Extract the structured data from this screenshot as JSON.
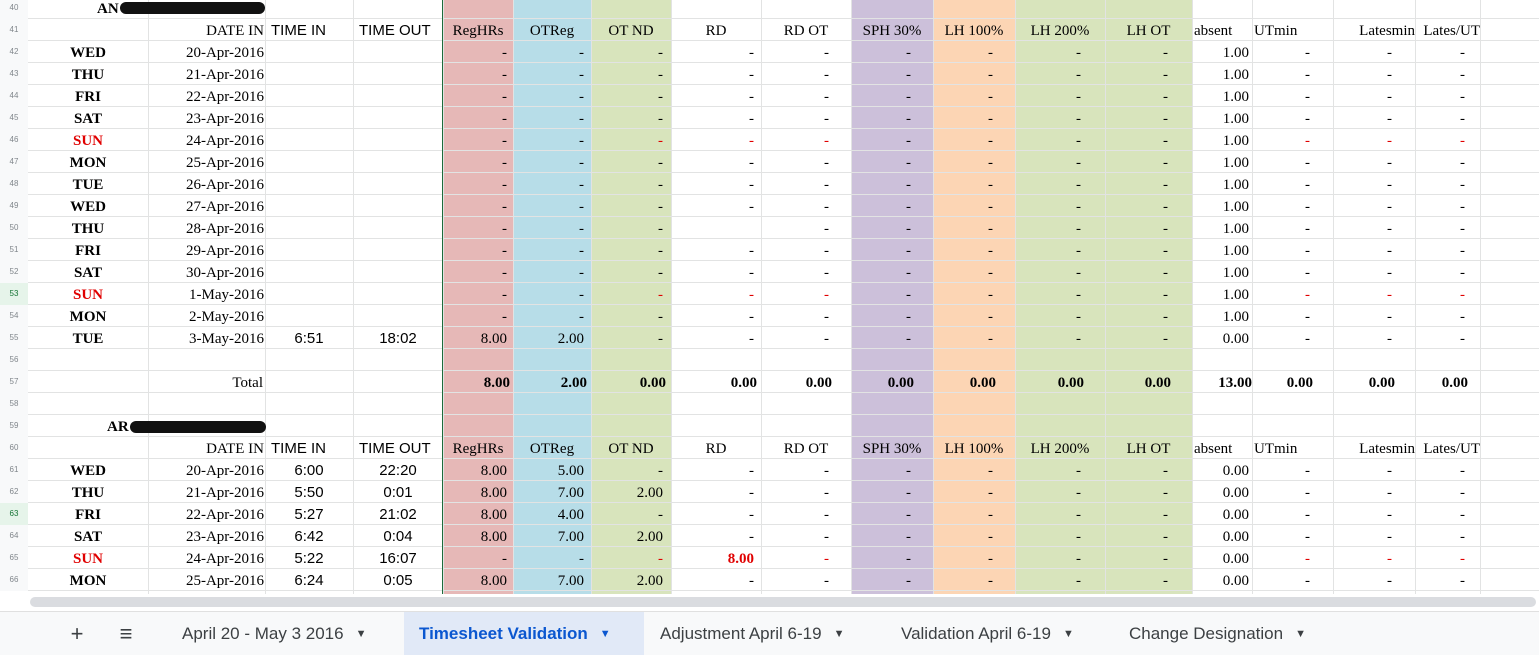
{
  "colors": {
    "reg": "#e6b8b7",
    "otreg": "#b7dde8",
    "otnd": "#d8e4bc",
    "sph": "#ccc0da",
    "lh100": "#fcd5b4",
    "lh200": "#d8e4bc",
    "lhot": "#d8e4bc",
    "accent": "#0b57d0",
    "holiday_red": "#e00000"
  },
  "headers": [
    "DATE IN",
    "TIME IN",
    "TIME OUT",
    "RegHRs",
    "OTReg",
    "OT ND",
    "RD",
    "RD OT",
    "SPH 30%",
    "LH 100%",
    "LH 200%",
    "LH OT",
    "absent",
    "UTmin",
    "Latesmin",
    "Lates/UT"
  ],
  "block1": {
    "name": "AN",
    "rows": [
      {
        "num": "42",
        "day": "WED",
        "date": "20-Apr-2016",
        "tin": "",
        "tout": "",
        "reg": "-",
        "ot": "-",
        "otnd": "-",
        "rd": "-",
        "rdot": "-",
        "sph": "-",
        "lh100": "-",
        "lh200": "-",
        "lhot": "-",
        "absent": "1.00",
        "ut": "-",
        "late": "-",
        "lut": "-"
      },
      {
        "num": "43",
        "day": "THU",
        "date": "21-Apr-2016",
        "tin": "",
        "tout": "",
        "reg": "-",
        "ot": "-",
        "otnd": "-",
        "rd": "-",
        "rdot": "-",
        "sph": "-",
        "lh100": "-",
        "lh200": "-",
        "lhot": "-",
        "absent": "1.00",
        "ut": "-",
        "late": "-",
        "lut": "-"
      },
      {
        "num": "44",
        "day": "FRI",
        "date": "22-Apr-2016",
        "tin": "",
        "tout": "",
        "reg": "-",
        "ot": "-",
        "otnd": "-",
        "rd": "-",
        "rdot": "-",
        "sph": "-",
        "lh100": "-",
        "lh200": "-",
        "lhot": "-",
        "absent": "1.00",
        "ut": "-",
        "late": "-",
        "lut": "-"
      },
      {
        "num": "45",
        "day": "SAT",
        "date": "23-Apr-2016",
        "tin": "",
        "tout": "",
        "reg": "-",
        "ot": "-",
        "otnd": "-",
        "rd": "-",
        "rdot": "-",
        "sph": "-",
        "lh100": "-",
        "lh200": "-",
        "lhot": "-",
        "absent": "1.00",
        "ut": "-",
        "late": "-",
        "lut": "-"
      },
      {
        "num": "46",
        "day": "SUN",
        "date": "24-Apr-2016",
        "tin": "",
        "tout": "",
        "reg": "-",
        "ot": "-",
        "otnd": "-",
        "rd": "-",
        "rdot": "-",
        "sph": "-",
        "lh100": "-",
        "lh200": "-",
        "lhot": "-",
        "absent": "1.00",
        "ut": "-",
        "late": "-",
        "lut": "-"
      },
      {
        "num": "47",
        "day": "MON",
        "date": "25-Apr-2016",
        "tin": "",
        "tout": "",
        "reg": "-",
        "ot": "-",
        "otnd": "-",
        "rd": "-",
        "rdot": "-",
        "sph": "-",
        "lh100": "-",
        "lh200": "-",
        "lhot": "-",
        "absent": "1.00",
        "ut": "-",
        "late": "-",
        "lut": "-"
      },
      {
        "num": "48",
        "day": "TUE",
        "date": "26-Apr-2016",
        "tin": "",
        "tout": "",
        "reg": "-",
        "ot": "-",
        "otnd": "-",
        "rd": "-",
        "rdot": "-",
        "sph": "-",
        "lh100": "-",
        "lh200": "-",
        "lhot": "-",
        "absent": "1.00",
        "ut": "-",
        "late": "-",
        "lut": "-"
      },
      {
        "num": "49",
        "day": "WED",
        "date": "27-Apr-2016",
        "tin": "",
        "tout": "",
        "reg": "-",
        "ot": "-",
        "otnd": "-",
        "rd": "-",
        "rdot": "-",
        "sph": "-",
        "lh100": "-",
        "lh200": "-",
        "lhot": "-",
        "absent": "1.00",
        "ut": "-",
        "late": "-",
        "lut": "-"
      },
      {
        "num": "50",
        "day": "THU",
        "date": "28-Apr-2016",
        "tin": "",
        "tout": "",
        "reg": "-",
        "ot": "-",
        "otnd": "-",
        "rd": "",
        "rdot": "-",
        "sph": "-",
        "lh100": "-",
        "lh200": "-",
        "lhot": "-",
        "absent": "1.00",
        "ut": "-",
        "late": "-",
        "lut": "-"
      },
      {
        "num": "51",
        "day": "FRI",
        "date": "29-Apr-2016",
        "tin": "",
        "tout": "",
        "reg": "-",
        "ot": "-",
        "otnd": "-",
        "rd": "-",
        "rdot": "-",
        "sph": "-",
        "lh100": "-",
        "lh200": "-",
        "lhot": "-",
        "absent": "1.00",
        "ut": "-",
        "late": "-",
        "lut": "-"
      },
      {
        "num": "52",
        "day": "SAT",
        "date": "30-Apr-2016",
        "tin": "",
        "tout": "",
        "reg": "-",
        "ot": "-",
        "otnd": "-",
        "rd": "-",
        "rdot": "-",
        "sph": "-",
        "lh100": "-",
        "lh200": "-",
        "lhot": "-",
        "absent": "1.00",
        "ut": "-",
        "late": "-",
        "lut": "-"
      },
      {
        "num": "53",
        "day": "SUN",
        "date": "1-May-2016",
        "tin": "",
        "tout": "",
        "reg": "-",
        "ot": "-",
        "otnd": "-",
        "rd": "-",
        "rdot": "-",
        "sph": "-",
        "lh100": "-",
        "lh200": "-",
        "lhot": "-",
        "absent": "1.00",
        "ut": "-",
        "late": "-",
        "lut": "-"
      },
      {
        "num": "54",
        "day": "MON",
        "date": "2-May-2016",
        "tin": "",
        "tout": "",
        "reg": "-",
        "ot": "-",
        "otnd": "-",
        "rd": "-",
        "rdot": "-",
        "sph": "-",
        "lh100": "-",
        "lh200": "-",
        "lhot": "-",
        "absent": "1.00",
        "ut": "-",
        "late": "-",
        "lut": "-"
      },
      {
        "num": "55",
        "day": "TUE",
        "date": "3-May-2016",
        "tin": "6:51",
        "tout": "18:02",
        "reg": "8.00",
        "ot": "2.00",
        "otnd": "-",
        "rd": "-",
        "rdot": "-",
        "sph": "-",
        "lh100": "-",
        "lh200": "-",
        "lhot": "-",
        "absent": "0.00",
        "ut": "-",
        "late": "-",
        "lut": "-"
      }
    ],
    "total": {
      "label": "Total",
      "reg": "8.00",
      "ot": "2.00",
      "otnd": "0.00",
      "rd": "0.00",
      "rdot": "0.00",
      "sph": "0.00",
      "lh100": "0.00",
      "lh200": "0.00",
      "lhot": "0.00",
      "absent": "13.00",
      "ut": "0.00",
      "late": "0.00",
      "lut": "0.00"
    }
  },
  "block2": {
    "name": "AR",
    "rows": [
      {
        "num": "61",
        "day": "WED",
        "date": "20-Apr-2016",
        "tin": "6:00",
        "tout": "22:20",
        "reg": "8.00",
        "ot": "5.00",
        "otnd": "-",
        "rd": "-",
        "rdot": "-",
        "sph": "-",
        "lh100": "-",
        "lh200": "-",
        "lhot": "-",
        "absent": "0.00",
        "ut": "-",
        "late": "-",
        "lut": "-"
      },
      {
        "num": "62",
        "day": "THU",
        "date": "21-Apr-2016",
        "tin": "5:50",
        "tout": "0:01",
        "reg": "8.00",
        "ot": "7.00",
        "otnd": "2.00",
        "rd": "-",
        "rdot": "-",
        "sph": "-",
        "lh100": "-",
        "lh200": "-",
        "lhot": "-",
        "absent": "0.00",
        "ut": "-",
        "late": "-",
        "lut": "-"
      },
      {
        "num": "63",
        "day": "FRI",
        "date": "22-Apr-2016",
        "tin": "5:27",
        "tout": "21:02",
        "reg": "8.00",
        "ot": "4.00",
        "otnd": "-",
        "rd": "-",
        "rdot": "-",
        "sph": "-",
        "lh100": "-",
        "lh200": "-",
        "lhot": "-",
        "absent": "0.00",
        "ut": "-",
        "late": "-",
        "lut": "-"
      },
      {
        "num": "64",
        "day": "SAT",
        "date": "23-Apr-2016",
        "tin": "6:42",
        "tout": "0:04",
        "reg": "8.00",
        "ot": "7.00",
        "otnd": "2.00",
        "rd": "-",
        "rdot": "-",
        "sph": "-",
        "lh100": "-",
        "lh200": "-",
        "lhot": "-",
        "absent": "0.00",
        "ut": "-",
        "late": "-",
        "lut": "-"
      },
      {
        "num": "65",
        "day": "SUN",
        "date": "24-Apr-2016",
        "tin": "5:22",
        "tout": "16:07",
        "reg": "-",
        "ot": "-",
        "otnd": "-",
        "rd": "8.00",
        "rdot": "-",
        "sph": "-",
        "lh100": "-",
        "lh200": "-",
        "lhot": "-",
        "absent": "0.00",
        "ut": "-",
        "late": "-",
        "lut": "-"
      },
      {
        "num": "66",
        "day": "MON",
        "date": "25-Apr-2016",
        "tin": "6:24",
        "tout": "0:05",
        "reg": "8.00",
        "ot": "7.00",
        "otnd": "2.00",
        "rd": "-",
        "rdot": "-",
        "sph": "-",
        "lh100": "-",
        "lh200": "-",
        "lhot": "-",
        "absent": "0.00",
        "ut": "-",
        "late": "-",
        "lut": "-"
      }
    ]
  },
  "row_numbers": {
    "r40": "40",
    "r41": "41",
    "r56": "56",
    "r57": "57",
    "r58": "58",
    "r59": "59",
    "r60": "60"
  },
  "tabbar": {
    "add_icon": "+",
    "menu_icon": "≡",
    "tabs": [
      {
        "label": "April 20 - May 3 2016"
      },
      {
        "label": "Timesheet Validation"
      },
      {
        "label": "Adjustment April 6-19"
      },
      {
        "label": "Validation April 6-19"
      },
      {
        "label": "Change Designation"
      }
    ]
  }
}
